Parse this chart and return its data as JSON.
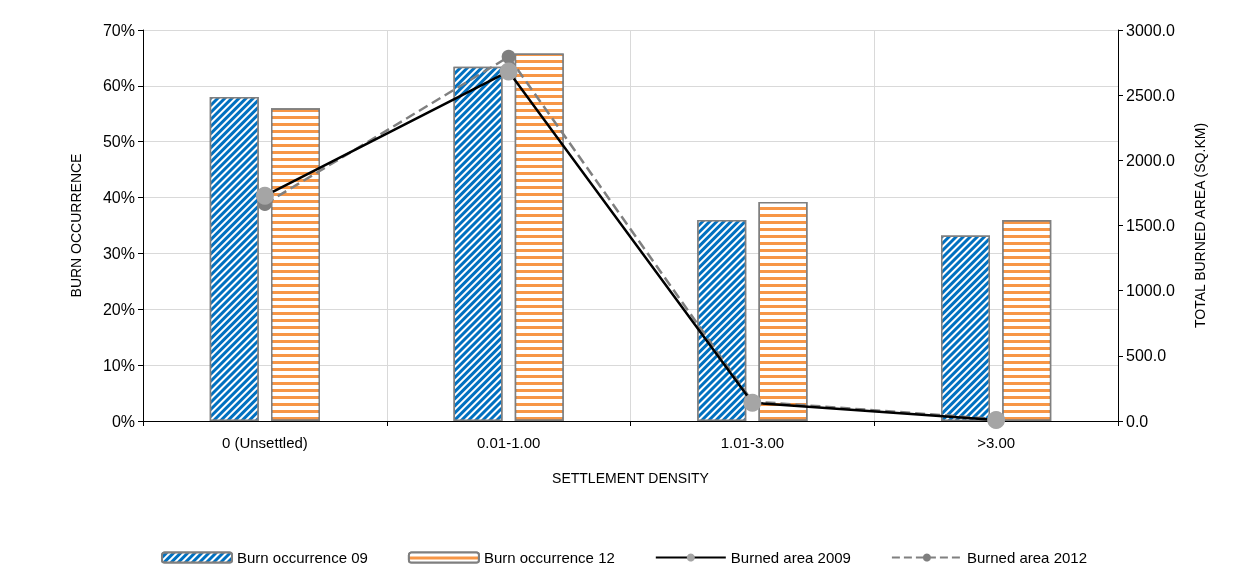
{
  "chart_data": {
    "type": "bar",
    "xlabel": "SETTLEMENT DENSITY",
    "ylabel": "BURN OCCURRENCE",
    "y2label": "TOTAL BURNED AREA (SQ.KM)",
    "categories": [
      "0 (Unsettled)",
      "0.01-1.00",
      "1.01-3.00",
      ">3.00"
    ],
    "series": [
      {
        "name": "Burn occurrence 09",
        "color": "#0070c0",
        "values": [
          58.0,
          63.4,
          36.0,
          33.2
        ]
      },
      {
        "name": "Burn occurrence 12",
        "color": "#f79646",
        "values": [
          56.0,
          65.8,
          39.2,
          36.0
        ]
      },
      {
        "name": "Burned area 2009",
        "type": "line",
        "axis": "y2",
        "color": "#000000",
        "marker": "circle",
        "line_style": "solid",
        "values": [
          1728,
          2682,
          140,
          8
        ]
      },
      {
        "name": "Burned area 2012",
        "type": "line",
        "axis": "y2",
        "color": "#808080",
        "marker": "circle",
        "line_style": "dashed",
        "values": [
          1665,
          2794,
          150,
          15
        ]
      }
    ],
    "ylim": [
      0,
      70
    ],
    "yticks": [
      {
        "value": 0,
        "label": "0%"
      },
      {
        "value": 10,
        "label": "10%"
      },
      {
        "value": 20,
        "label": "20%"
      },
      {
        "value": 30,
        "label": "30%"
      },
      {
        "value": 40,
        "label": "40%"
      },
      {
        "value": 50,
        "label": "50%"
      },
      {
        "value": 60,
        "label": "60%"
      },
      {
        "value": 70,
        "label": "70%"
      }
    ],
    "y2lim": [
      0,
      3000
    ],
    "y2ticks": [
      {
        "value": 0,
        "label": "0.0"
      },
      {
        "value": 500,
        "label": "500.0"
      },
      {
        "value": 1000,
        "label": "1000.0"
      },
      {
        "value": 1500,
        "label": "1500.0"
      },
      {
        "value": 2000,
        "label": "2000.0"
      },
      {
        "value": 2500,
        "label": "2500.0"
      },
      {
        "value": 3000,
        "label": "3000.0"
      }
    ],
    "grid": true,
    "legend": "bottom"
  }
}
